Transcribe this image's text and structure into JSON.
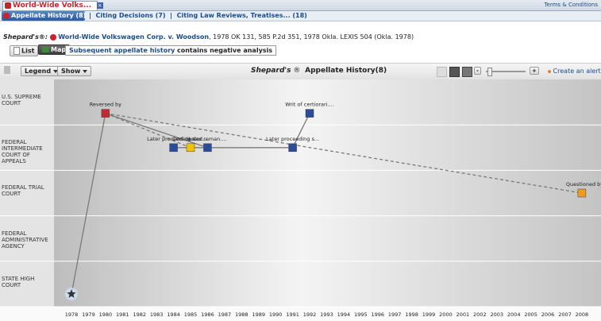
{
  "tab": {
    "title": "World-Wide Volks...",
    "terms": "Terms & Conditions"
  },
  "subtabs": [
    "Appellate History (8)",
    "Citing Decisions (7)",
    "Citing Law Reviews, Treatises... (18)"
  ],
  "citation": {
    "label": "Shepard's®:",
    "case": "World-Wide Volkswagen Corp. v. Woodson",
    "cite": ", 1978 OK 131, 585 P.2d 351, 1978 Okla. LEXIS 504 (Okla. 1978)"
  },
  "view": {
    "list": "List",
    "map": "Map",
    "summary": "Subsequent appellate history",
    "analysis": "contains negative analysis"
  },
  "toolbar": {
    "legend": "Legend",
    "show": "Show",
    "brand": "Shepard's",
    "reg": "®",
    "title": "Appellate History(8)",
    "minus": "-",
    "plus": "+",
    "alert": "Create an alert"
  },
  "map": {
    "courts": [
      "U.S. SUPREME COURT",
      "FEDERAL INTERMEDIATE COURT OF APPEALS",
      "FEDERAL TRIAL COURT",
      "FEDERAL ADMINISTRATIVE AGENCY",
      "STATE HIGH COURT"
    ],
    "years": [
      "1978",
      "1979",
      "1980",
      "1981",
      "1982",
      "1983",
      "1984",
      "1985",
      "1986",
      "1987",
      "1988",
      "1989",
      "1990",
      "1991",
      "1992",
      "1993",
      "1994",
      "1995",
      "1996",
      "1997",
      "1998",
      "1999",
      "2000",
      "2001",
      "2002",
      "2003",
      "2004",
      "2005",
      "2006",
      "2007",
      "2008"
    ],
    "nodes": [
      {
        "label": "Reversed by"
      },
      {
        "label": "Later proceeding s..."
      },
      {
        "label": "Cert denied...."
      },
      {
        "label": "Later reman...."
      },
      {
        "label": "Later proceeding s..."
      },
      {
        "label": "Writ of certiorari...."
      },
      {
        "label": "Questioned by"
      }
    ]
  }
}
